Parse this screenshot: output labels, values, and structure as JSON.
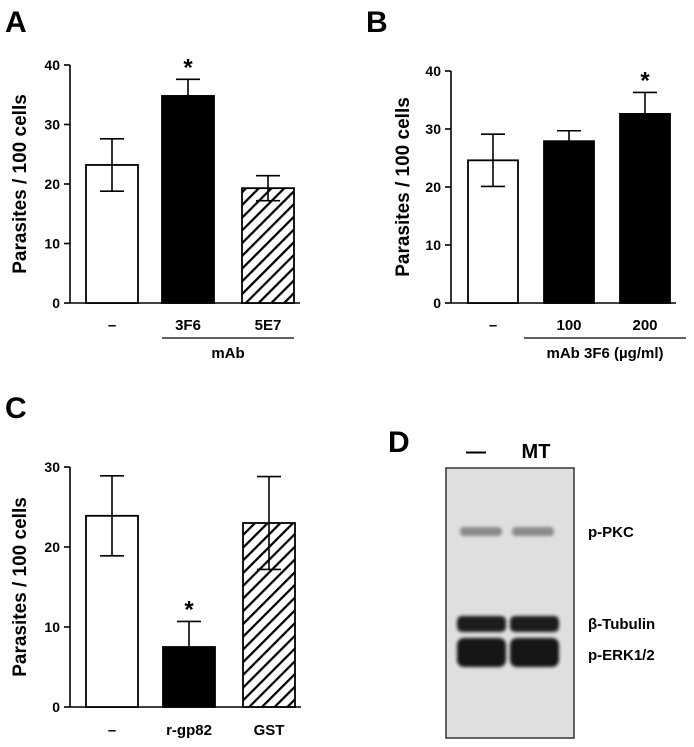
{
  "chart_data": [
    {
      "panel": "A",
      "type": "bar",
      "ylabel": "Parasites / 100 cells",
      "ylim": [
        0,
        40
      ],
      "yticks": [
        0,
        10,
        20,
        30,
        40
      ],
      "categories": [
        "–",
        "3F6",
        "5E7"
      ],
      "group_label": "mAb",
      "values": [
        23.2,
        34.8,
        19.3
      ],
      "errors": [
        4.4,
        2.8,
        2.1
      ],
      "fills": [
        "white",
        "black",
        "hatched"
      ],
      "significance": [
        "",
        "*",
        ""
      ]
    },
    {
      "panel": "B",
      "type": "bar",
      "ylabel": "Parasites / 100 cells",
      "ylim": [
        0,
        40
      ],
      "yticks": [
        0,
        10,
        20,
        30,
        40
      ],
      "categories": [
        "–",
        "100",
        "200"
      ],
      "group_label": "mAb 3F6 (µg/ml)",
      "values": [
        24.6,
        27.9,
        32.6
      ],
      "errors": [
        4.5,
        1.8,
        3.7
      ],
      "fills": [
        "white",
        "black",
        "black"
      ],
      "significance": [
        "",
        "",
        "*"
      ]
    },
    {
      "panel": "C",
      "type": "bar",
      "ylabel": "Parasites / 100 cells",
      "ylim": [
        0,
        30
      ],
      "yticks": [
        0,
        10,
        20,
        30
      ],
      "categories": [
        "–",
        "r-gp82",
        "GST"
      ],
      "group_label": "",
      "values": [
        23.9,
        7.5,
        23.0
      ],
      "errors": [
        5.0,
        3.2,
        5.8
      ],
      "fills": [
        "white",
        "black",
        "hatched"
      ],
      "significance": [
        "",
        "*",
        ""
      ]
    }
  ],
  "blot": {
    "panel": "D",
    "lane_labels": [
      "—",
      "MT"
    ],
    "band_labels": [
      "p-PKC",
      "β-Tubulin",
      "p-ERK1/2"
    ]
  }
}
